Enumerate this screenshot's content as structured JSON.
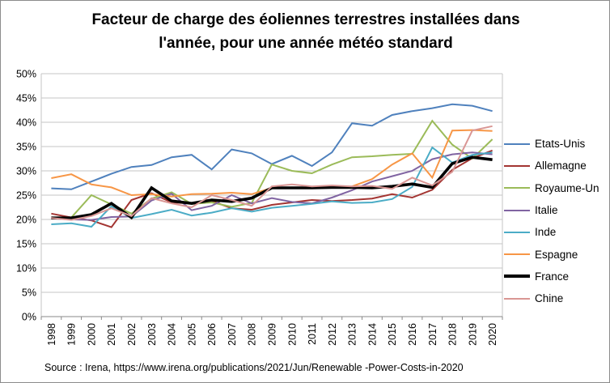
{
  "title_lines": [
    "Facteur de charge des éoliennes terrestres installées dans",
    "l'année, pour une année météo standard"
  ],
  "source": "Source : Irena, https://www.irena.org/publications/2021/Jun/Renewable -Power-Costs-in-2020",
  "chart_data": {
    "type": "line",
    "x": [
      "1998",
      "1999",
      "2000",
      "2001",
      "2002",
      "2003",
      "2004",
      "2005",
      "2006",
      "2007",
      "2008",
      "2009",
      "2010",
      "2011",
      "2012",
      "2013",
      "2014",
      "2015",
      "2016",
      "2017",
      "2018",
      "2019",
      "2020"
    ],
    "yticks": [
      "0%",
      "5%",
      "10%",
      "15%",
      "20%",
      "25%",
      "30%",
      "35%",
      "40%",
      "45%",
      "50%"
    ],
    "ylim": [
      0,
      50
    ],
    "ytick_step": 5,
    "grid": true,
    "legend_position": "right",
    "grid_color": "#c6c6c6",
    "axis_color": "#898989",
    "series": [
      {
        "name": "Etats-Unis",
        "color": "#4F81BD",
        "width": 2,
        "values": [
          26.4,
          26.2,
          27.8,
          29.4,
          30.8,
          31.2,
          32.8,
          33.3,
          30.3,
          34.4,
          33.6,
          31.4,
          33.1,
          31.0,
          33.8,
          39.8,
          39.3,
          41.5,
          42.3,
          42.9,
          43.7,
          43.4,
          42.3
        ]
      },
      {
        "name": "Allemagne",
        "color": "#A33532",
        "width": 2,
        "values": [
          21.2,
          20.4,
          19.8,
          18.4,
          24.0,
          25.4,
          23.5,
          23.3,
          23.8,
          22.3,
          22.0,
          23.0,
          23.5,
          24.0,
          23.8,
          24.0,
          24.3,
          25.2,
          24.5,
          26.1,
          30.2,
          32.6,
          34.2
        ]
      },
      {
        "name": "Royaume-Un",
        "color": "#9BBB59",
        "width": 2,
        "values": [
          20.2,
          20.4,
          25.0,
          23.1,
          21.2,
          24.3,
          25.6,
          23.2,
          23.5,
          22.6,
          23.4,
          31.3,
          30.0,
          29.5,
          31.3,
          32.8,
          33.0,
          33.3,
          33.5,
          40.3,
          35.4,
          32.5,
          36.5
        ]
      },
      {
        "name": "Italie",
        "color": "#8064A2",
        "width": 2,
        "values": [
          20.2,
          20.0,
          19.9,
          20.5,
          20.6,
          23.9,
          25.3,
          21.9,
          22.8,
          25.0,
          23.3,
          24.4,
          23.6,
          23.3,
          24.5,
          26.0,
          27.8,
          28.9,
          30.0,
          32.4,
          33.4,
          33.8,
          33.4
        ]
      },
      {
        "name": "Inde",
        "color": "#4BACC6",
        "width": 2,
        "values": [
          19.0,
          19.2,
          18.5,
          22.7,
          20.3,
          21.1,
          22.0,
          20.8,
          21.4,
          22.3,
          21.6,
          22.4,
          22.8,
          23.2,
          23.7,
          23.4,
          23.5,
          24.2,
          26.7,
          34.8,
          31.7,
          33.3,
          33.8
        ]
      },
      {
        "name": "Espagne",
        "color": "#F79646",
        "width": 2,
        "values": [
          28.5,
          29.3,
          27.2,
          26.6,
          25.0,
          25.2,
          24.7,
          25.2,
          25.3,
          25.5,
          25.2,
          26.5,
          26.6,
          26.5,
          26.7,
          26.8,
          28.3,
          31.3,
          33.6,
          28.6,
          38.3,
          38.4,
          38.2
        ]
      },
      {
        "name": "France",
        "color": "#000000",
        "width": 3.6,
        "values": [
          20.3,
          20.3,
          21.0,
          23.3,
          20.4,
          26.5,
          23.8,
          23.3,
          24.0,
          23.7,
          24.4,
          26.5,
          26.5,
          26.5,
          26.6,
          26.6,
          26.5,
          26.8,
          27.3,
          26.6,
          31.5,
          32.8,
          32.3
        ]
      },
      {
        "name": "Chine",
        "color": "#D99694",
        "width": 2,
        "values": [
          20.3,
          19.9,
          20.7,
          22.3,
          20.7,
          24.4,
          23.3,
          22.5,
          25.0,
          24.0,
          22.8,
          26.8,
          27.2,
          26.8,
          27.0,
          26.8,
          26.9,
          26.3,
          28.6,
          27.0,
          29.8,
          38.3,
          39.2
        ]
      }
    ]
  }
}
